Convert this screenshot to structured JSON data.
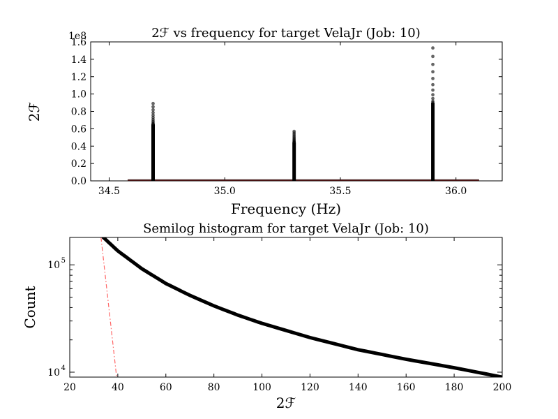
{
  "chart_data": [
    {
      "type": "scatter",
      "title": "2ℱ vs frequency for target VelaJr (Job: 10)",
      "xlabel": "Frequency (Hz)",
      "ylabel": "2ℱ",
      "offset_label": "1e8",
      "xlim": [
        34.42,
        36.2
      ],
      "ylim": [
        0,
        1.6
      ],
      "xticks": [
        34.5,
        35.0,
        35.5,
        36.0
      ],
      "xtick_labels": [
        "34.5",
        "35.0",
        "35.5",
        "36.0"
      ],
      "yticks": [
        0,
        0.2,
        0.4,
        0.6,
        0.8,
        1.0,
        1.2,
        1.4,
        1.6
      ],
      "ytick_labels": [
        "0.0",
        "0.2",
        "0.4",
        "0.6",
        "0.8",
        "1.0",
        "1.2",
        "1.4",
        "1.6"
      ],
      "baseline_range": [
        34.58,
        36.1
      ],
      "spikes": [
        {
          "x": 34.69,
          "solid_top": 0.65,
          "max": 0.89
        },
        {
          "x": 35.3,
          "solid_top": 0.44,
          "max": 0.57
        },
        {
          "x": 35.9,
          "solid_top": 0.9,
          "max": 1.53
        }
      ],
      "colors": {
        "points": "#000000",
        "baseline": "#cc3333"
      }
    },
    {
      "type": "line",
      "title": "Semilog histogram for target VelaJr (Job: 10)",
      "xlabel": "2ℱ",
      "ylabel": "Count",
      "xlim": [
        20,
        200
      ],
      "ylim": [
        9000,
        180000
      ],
      "yscale": "log",
      "xticks": [
        20,
        40,
        60,
        80,
        100,
        120,
        140,
        160,
        180,
        200
      ],
      "xtick_labels": [
        "20",
        "40",
        "60",
        "80",
        "100",
        "120",
        "140",
        "160",
        "180",
        "200"
      ],
      "yticks": [
        10000,
        100000
      ],
      "ytick_labels": [
        {
          "base": "10",
          "exp": "4"
        },
        {
          "base": "10",
          "exp": "5"
        }
      ],
      "series": [
        {
          "style": "thick-black",
          "x": [
            34,
            40,
            50,
            60,
            70,
            80,
            90,
            100,
            120,
            140,
            160,
            180,
            200
          ],
          "y": [
            180000,
            135000,
            92000,
            67000,
            52000,
            41500,
            34000,
            28500,
            21000,
            16200,
            13200,
            11000,
            9000
          ]
        },
        {
          "style": "red-dashdot",
          "x": [
            33,
            39.5
          ],
          "y": [
            180000,
            9000
          ]
        }
      ],
      "colors": {
        "main": "#000000",
        "reference": "#ff6666"
      }
    }
  ]
}
